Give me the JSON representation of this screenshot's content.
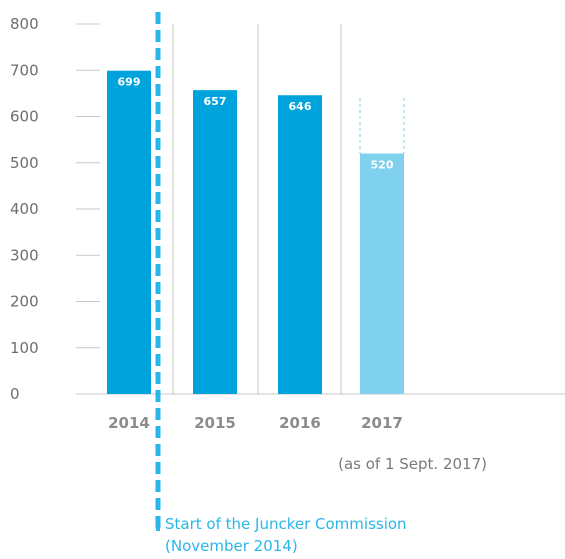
{
  "chart_data": {
    "type": "bar",
    "categories": [
      "2014",
      "2015",
      "2016",
      "2017"
    ],
    "values": [
      699,
      657,
      646,
      520
    ],
    "data_labels": [
      "699",
      "657",
      "646",
      "520"
    ],
    "yticks": [
      "0",
      "100",
      "200",
      "300",
      "400",
      "500",
      "600",
      "700",
      "800"
    ],
    "ylim": [
      0,
      800
    ],
    "grid": false,
    "bar_colors": [
      "#00a3dc",
      "#00a3dc",
      "#00a3dc",
      "#7fd1ee"
    ],
    "projection_top": 640,
    "projection_bar": "2017",
    "note": "(as of 1 Sept. 2017)",
    "annotation": {
      "line1": "Start of the Juncker Commission",
      "line2": "(November 2014)",
      "color": "#29b6e8"
    }
  }
}
